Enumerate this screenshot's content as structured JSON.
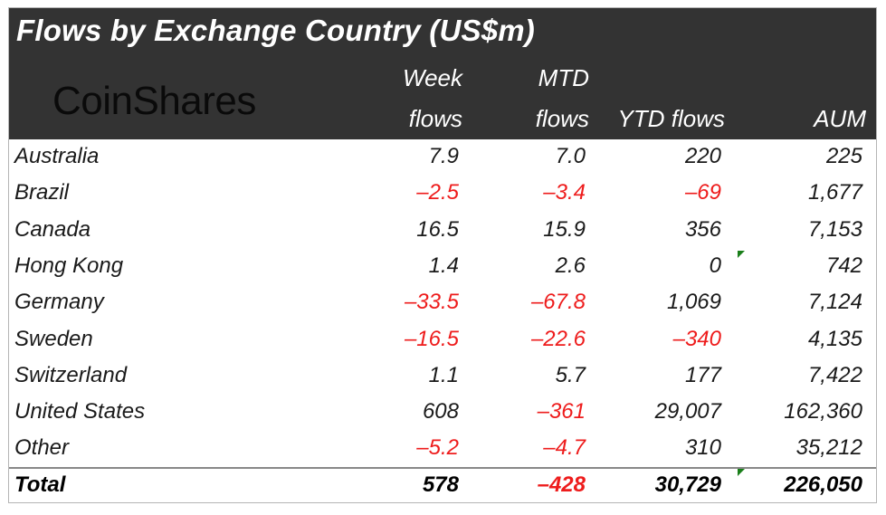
{
  "chart_data": {
    "type": "table",
    "title": "Flows by Exchange Country (US$m)",
    "logo_text": "CoinShares",
    "columns": [
      {
        "line1": "Week",
        "line2": "flows"
      },
      {
        "line1": "MTD",
        "line2": "flows"
      },
      {
        "line1": "",
        "line2": "YTD flows"
      },
      {
        "line1": "",
        "line2": "AUM"
      }
    ],
    "rows": [
      {
        "country": "Australia",
        "values": [
          "7.9",
          "7.0",
          "220",
          "225"
        ]
      },
      {
        "country": "Brazil",
        "values": [
          "-2.5",
          "-3.4",
          "-69",
          "1,677"
        ]
      },
      {
        "country": "Canada",
        "values": [
          "16.5",
          "15.9",
          "356",
          "7,153"
        ]
      },
      {
        "country": "Hong Kong",
        "values": [
          "1.4",
          "2.6",
          "0",
          "742"
        ]
      },
      {
        "country": "Germany",
        "values": [
          "-33.5",
          "-67.8",
          "1,069",
          "7,124"
        ]
      },
      {
        "country": "Sweden",
        "values": [
          "-16.5",
          "-22.6",
          "-340",
          "4,135"
        ]
      },
      {
        "country": "Switzerland",
        "values": [
          "1.1",
          "5.7",
          "177",
          "7,422"
        ]
      },
      {
        "country": "United States",
        "values": [
          "608",
          "-361",
          "29,007",
          "162,360"
        ]
      },
      {
        "country": "Other",
        "values": [
          "-5.2",
          "-4.7",
          "310",
          "35,212"
        ]
      }
    ],
    "total": {
      "country": "Total",
      "values": [
        "578",
        "-428",
        "30,729",
        "226,050"
      ]
    },
    "colors": {
      "header_bg": "#333333",
      "negative": "#ee1c1c",
      "positive": "#1a1a1a",
      "comment_flag": "#1a7f1a"
    }
  }
}
